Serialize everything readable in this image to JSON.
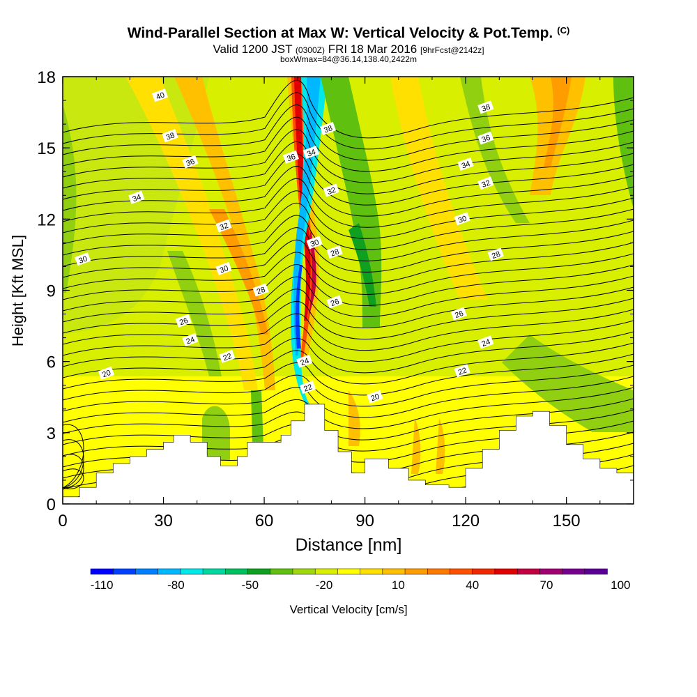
{
  "title": "Wind-Parallel Section at Max W: Vertical Velocity & Pot.Temp.",
  "copyright": "(C)",
  "subtitle": {
    "valid": "Valid 1200 JST",
    "utc": "(0300Z)",
    "date": "FRI 18 Mar 2016",
    "fcst": "[9hrFcst@2142z]"
  },
  "subtitle2": "boxWmax=84@36.14,138.40,2422m",
  "chart_data": {
    "type": "heatmap",
    "xlabel": "Distance [nm]",
    "ylabel": "Height [Kft MSL]",
    "xlim": [
      0,
      170
    ],
    "ylim": [
      0,
      18
    ],
    "x_ticks": [
      "0",
      "30",
      "60",
      "90",
      "120",
      "150"
    ],
    "y_ticks": [
      "0",
      "3",
      "6",
      "9",
      "12",
      "15",
      "18"
    ],
    "colorbar": {
      "label": "Vertical Velocity [cm/s]",
      "tick_labels": [
        "-110",
        "-80",
        "-50",
        "-20",
        "10",
        "40",
        "70",
        "100"
      ],
      "colors": [
        "#0000ff",
        "#0040ff",
        "#0080ff",
        "#00b8ff",
        "#00e8e8",
        "#00d8a0",
        "#00c060",
        "#10a020",
        "#60c010",
        "#a0d810",
        "#d8f000",
        "#ffff00",
        "#ffe000",
        "#ffc000",
        "#ff9c00",
        "#ff7800",
        "#ff5000",
        "#f02800",
        "#e00000",
        "#c00040",
        "#a00070",
        "#780090",
        "#5a0096"
      ]
    },
    "terrain_kft": [
      [
        0,
        0.3
      ],
      [
        5,
        0.7
      ],
      [
        10,
        1.3
      ],
      [
        15,
        1.7
      ],
      [
        20,
        2.0
      ],
      [
        25,
        2.3
      ],
      [
        30,
        2.6
      ],
      [
        33,
        2.9
      ],
      [
        38,
        2.6
      ],
      [
        43,
        2.0
      ],
      [
        47,
        1.6
      ],
      [
        52,
        2.0
      ],
      [
        55,
        2.6
      ],
      [
        60,
        2.6
      ],
      [
        65,
        2.9
      ],
      [
        68,
        3.5
      ],
      [
        72,
        4.2
      ],
      [
        77,
        4.2
      ],
      [
        78,
        3.1
      ],
      [
        82,
        2.2
      ],
      [
        86,
        1.3
      ],
      [
        90,
        1.9
      ],
      [
        97,
        1.5
      ],
      [
        103,
        1.0
      ],
      [
        108,
        0.8
      ],
      [
        115,
        0.7
      ],
      [
        119,
        0.7
      ],
      [
        120,
        1.5
      ],
      [
        125,
        2.3
      ],
      [
        130,
        3.1
      ],
      [
        135,
        3.7
      ],
      [
        140,
        3.9
      ],
      [
        145,
        3.3
      ],
      [
        150,
        2.5
      ],
      [
        155,
        1.9
      ],
      [
        160,
        1.5
      ],
      [
        165,
        1.3
      ],
      [
        170,
        1.2
      ]
    ],
    "theta_labels": [
      {
        "value": "40",
        "x": 29,
        "y": 17.2
      },
      {
        "value": "38",
        "x": 32,
        "y": 15.5
      },
      {
        "value": "36",
        "x": 38,
        "y": 14.4
      },
      {
        "value": "34",
        "x": 22,
        "y": 12.9
      },
      {
        "value": "32",
        "x": 48,
        "y": 11.7
      },
      {
        "value": "30",
        "x": 6,
        "y": 10.3
      },
      {
        "value": "30",
        "x": 48,
        "y": 9.9
      },
      {
        "value": "28",
        "x": 59,
        "y": 9.0
      },
      {
        "value": "26",
        "x": 36,
        "y": 7.7
      },
      {
        "value": "24",
        "x": 38,
        "y": 6.9
      },
      {
        "value": "22",
        "x": 49,
        "y": 6.2
      },
      {
        "value": "20",
        "x": 13,
        "y": 5.5
      },
      {
        "value": "36",
        "x": 68,
        "y": 14.6
      },
      {
        "value": "34",
        "x": 74,
        "y": 14.8
      },
      {
        "value": "38",
        "x": 79,
        "y": 15.8
      },
      {
        "value": "32",
        "x": 80,
        "y": 13.2
      },
      {
        "value": "30",
        "x": 75,
        "y": 11.0
      },
      {
        "value": "28",
        "x": 81,
        "y": 10.6
      },
      {
        "value": "26",
        "x": 81,
        "y": 8.5
      },
      {
        "value": "24",
        "x": 72,
        "y": 6.0
      },
      {
        "value": "22",
        "x": 73,
        "y": 4.9
      },
      {
        "value": "20",
        "x": 93,
        "y": 4.5
      },
      {
        "value": "38",
        "x": 126,
        "y": 16.7
      },
      {
        "value": "36",
        "x": 126,
        "y": 15.4
      },
      {
        "value": "34",
        "x": 120,
        "y": 14.3
      },
      {
        "value": "32",
        "x": 126,
        "y": 13.5
      },
      {
        "value": "30",
        "x": 119,
        "y": 12.0
      },
      {
        "value": "28",
        "x": 129,
        "y": 10.5
      },
      {
        "value": "26",
        "x": 118,
        "y": 8.0
      },
      {
        "value": "24",
        "x": 126,
        "y": 6.8
      },
      {
        "value": "22",
        "x": 119,
        "y": 5.6
      }
    ]
  }
}
